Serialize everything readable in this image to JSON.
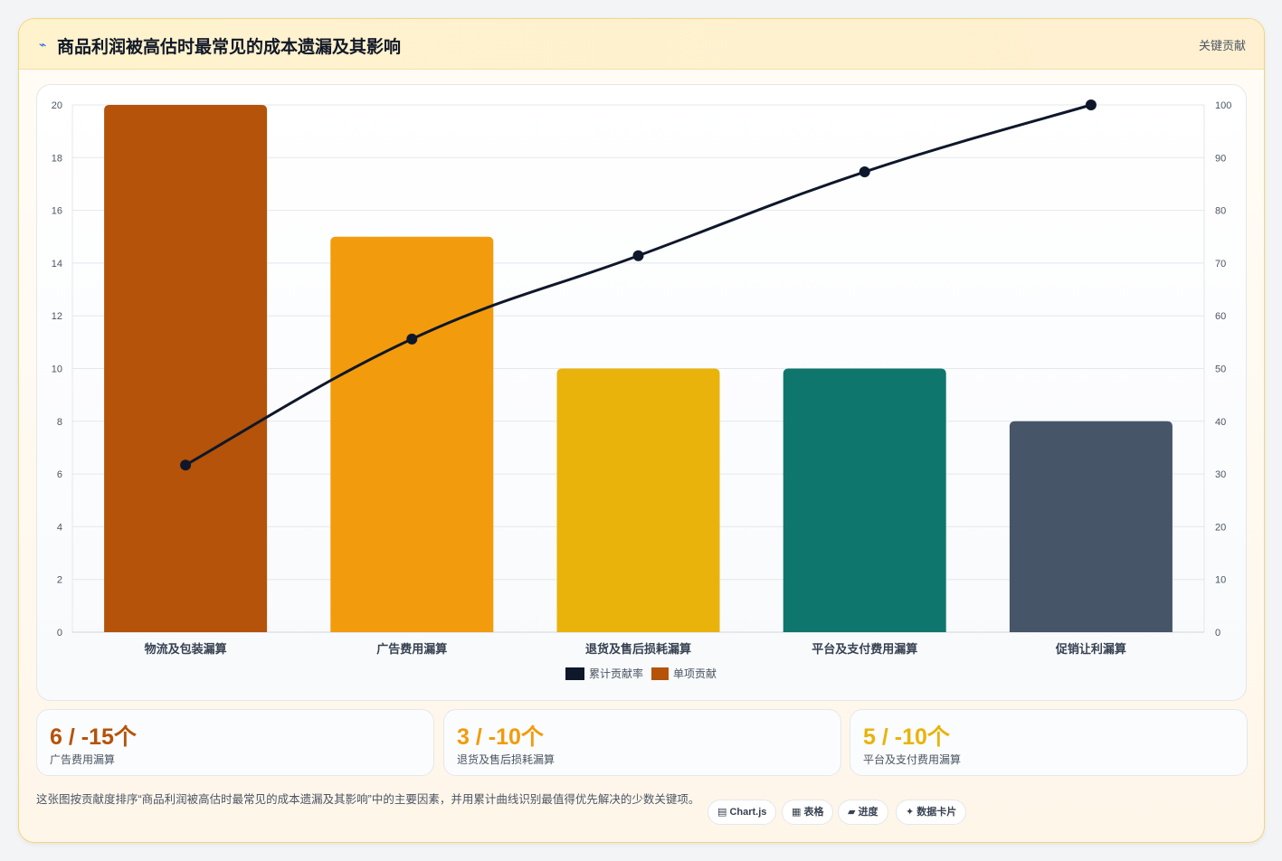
{
  "header": {
    "icon": "lightning-icon",
    "icon_glyph": "⌁",
    "title": "商品利润被高估时最常见的成本遗漏及其影响",
    "badge": "关键贡献"
  },
  "chart_data": {
    "type": "bar",
    "title": "",
    "categories": [
      "物流及包装漏算",
      "广告费用漏算",
      "退货及售后损耗漏算",
      "平台及支付费用漏算",
      "促销让利漏算"
    ],
    "series": [
      {
        "name": "单项贡献",
        "type": "bar",
        "axis": "left",
        "values": [
          20,
          15,
          10,
          10,
          8
        ],
        "colors": [
          "#b45309",
          "#f29b0c",
          "#e9b30b",
          "#0f766e",
          "#475569"
        ]
      },
      {
        "name": "累计贡献率",
        "type": "line",
        "axis": "right",
        "values": [
          31.7,
          55.6,
          71.4,
          87.3,
          100
        ],
        "color": "#0f172a"
      }
    ],
    "y_left": {
      "min": 0,
      "max": 20,
      "ticks": [
        0,
        2,
        4,
        6,
        8,
        10,
        12,
        14,
        16,
        18,
        20
      ]
    },
    "y_right": {
      "min": 0,
      "max": 100,
      "ticks": [
        0,
        10,
        20,
        30,
        40,
        50,
        60,
        70,
        80,
        90,
        100
      ]
    },
    "grid": true,
    "legend": {
      "position": "bottom",
      "items": [
        {
          "label": "累计贡献率",
          "color": "#0f172a"
        },
        {
          "label": "单项贡献",
          "color": "#b45309"
        }
      ]
    }
  },
  "stats": [
    {
      "value": "6 / -15个",
      "label": "广告费用漏算",
      "color": "#b45309"
    },
    {
      "value": "3 / -10个",
      "label": "退货及售后损耗漏算",
      "color": "#f29b0c"
    },
    {
      "value": "5 / -10个",
      "label": "平台及支付费用漏算",
      "color": "#e9b30b"
    }
  ],
  "footer": {
    "description": "这张图按贡献度排序“商品利润被高估时最常见的成本遗漏及其影响”中的主要因素，并用累计曲线识别最值得优先解决的少数关键项。",
    "chips": [
      {
        "label": "▤ Chart.js",
        "icon": "chart-icon"
      },
      {
        "label": "▦ 表格",
        "icon": "table-icon"
      },
      {
        "label": "▰ 进度",
        "icon": "progress-icon"
      },
      {
        "label": "✦ 数据卡片",
        "icon": "sparkle-icon"
      }
    ]
  }
}
